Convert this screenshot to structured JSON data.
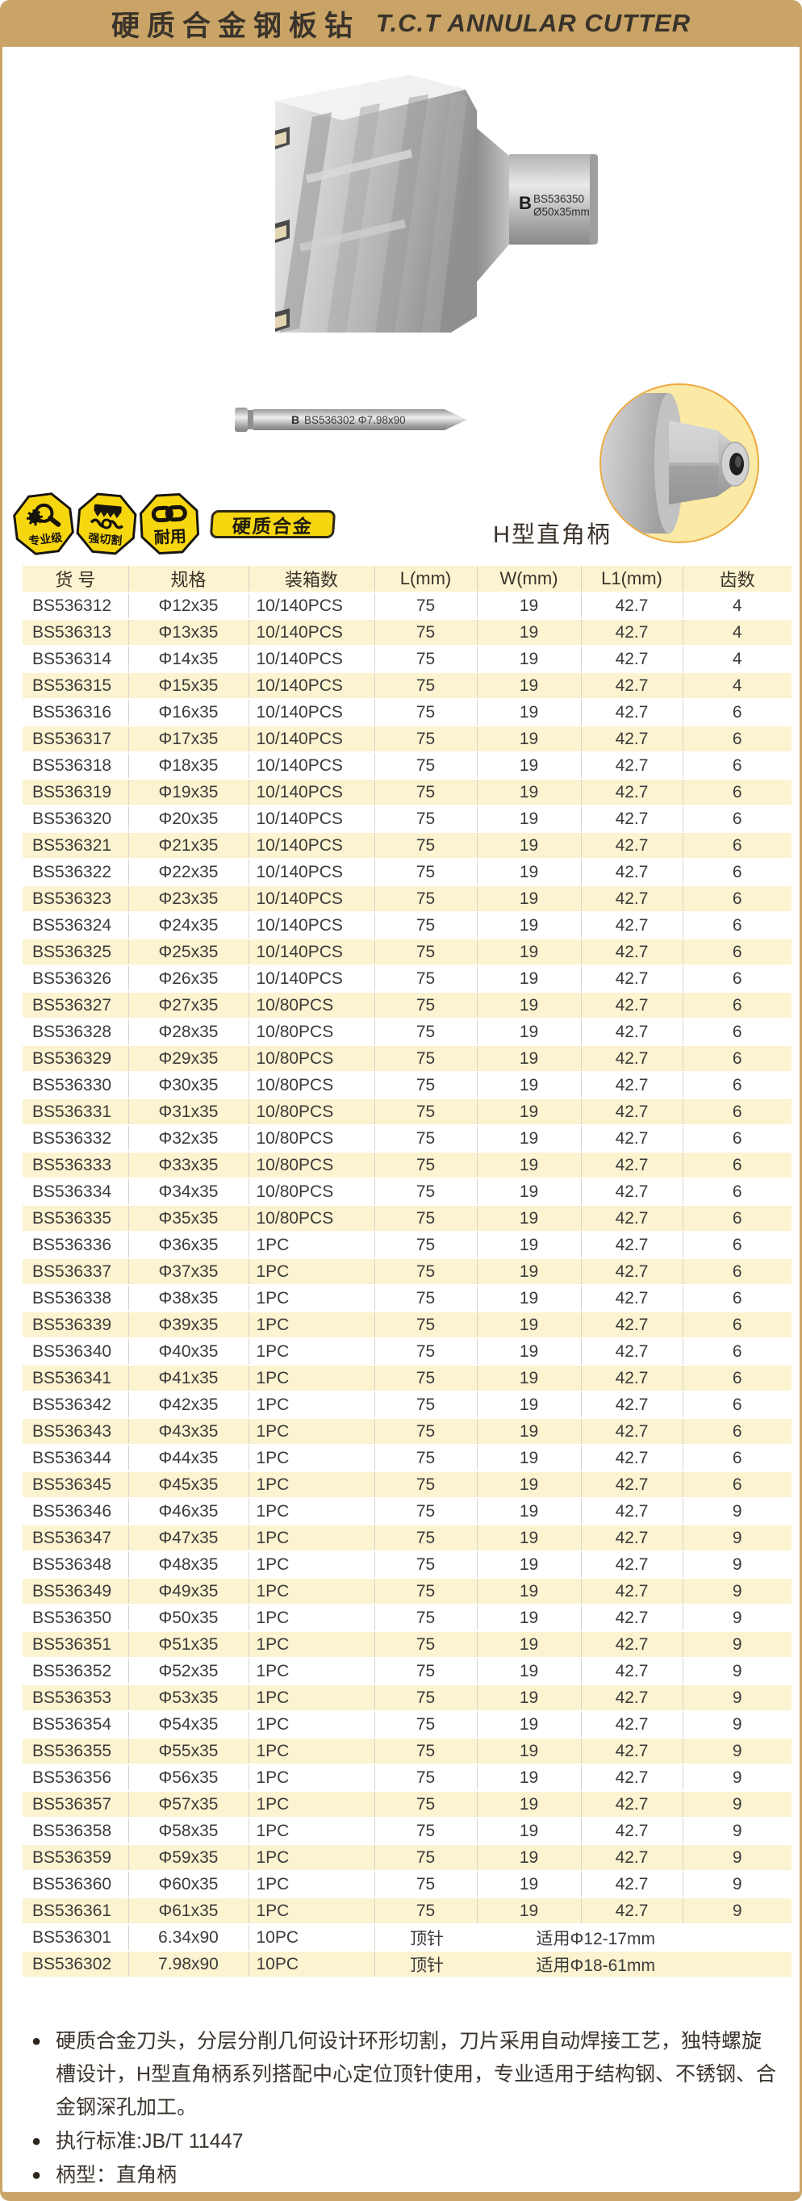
{
  "colors": {
    "accent_gold": "#C9A466",
    "row_stripe": "#FCF3D0",
    "badge_yellow": "#F6D60F",
    "circle_fill": "#FBE9A6",
    "title_text": "#3A332B"
  },
  "header": {
    "title_cn": "硬质合金钢板钻",
    "title_en": "T.C.T ANNULAR CUTTER"
  },
  "product": {
    "brand_letter": "B",
    "cutter_label_model": "BS536350",
    "cutter_label_size": "Ø50x35mm",
    "pin_label": "BS536302  Φ7.98x90",
    "shank_caption": "H型直角柄"
  },
  "badges": [
    {
      "label": "专业级",
      "icon": "magnifier-gear-icon"
    },
    {
      "label": "强切割",
      "icon": "cutting-blade-icon"
    },
    {
      "label": "耐用",
      "icon": "chain-link-icon"
    }
  ],
  "material_tag": "硬质合金",
  "table": {
    "headers": [
      "货  号",
      "规格",
      "装箱数",
      "L(mm)",
      "W(mm)",
      "L1(mm)",
      "齿数"
    ],
    "rows": [
      [
        "BS536312",
        "Φ12x35",
        "10/140PCS",
        "75",
        "19",
        "42.7",
        "4"
      ],
      [
        "BS536313",
        "Φ13x35",
        "10/140PCS",
        "75",
        "19",
        "42.7",
        "4"
      ],
      [
        "BS536314",
        "Φ14x35",
        "10/140PCS",
        "75",
        "19",
        "42.7",
        "4"
      ],
      [
        "BS536315",
        "Φ15x35",
        "10/140PCS",
        "75",
        "19",
        "42.7",
        "4"
      ],
      [
        "BS536316",
        "Φ16x35",
        "10/140PCS",
        "75",
        "19",
        "42.7",
        "6"
      ],
      [
        "BS536317",
        "Φ17x35",
        "10/140PCS",
        "75",
        "19",
        "42.7",
        "6"
      ],
      [
        "BS536318",
        "Φ18x35",
        "10/140PCS",
        "75",
        "19",
        "42.7",
        "6"
      ],
      [
        "BS536319",
        "Φ19x35",
        "10/140PCS",
        "75",
        "19",
        "42.7",
        "6"
      ],
      [
        "BS536320",
        "Φ20x35",
        "10/140PCS",
        "75",
        "19",
        "42.7",
        "6"
      ],
      [
        "BS536321",
        "Φ21x35",
        "10/140PCS",
        "75",
        "19",
        "42.7",
        "6"
      ],
      [
        "BS536322",
        "Φ22x35",
        "10/140PCS",
        "75",
        "19",
        "42.7",
        "6"
      ],
      [
        "BS536323",
        "Φ23x35",
        "10/140PCS",
        "75",
        "19",
        "42.7",
        "6"
      ],
      [
        "BS536324",
        "Φ24x35",
        "10/140PCS",
        "75",
        "19",
        "42.7",
        "6"
      ],
      [
        "BS536325",
        "Φ25x35",
        "10/140PCS",
        "75",
        "19",
        "42.7",
        "6"
      ],
      [
        "BS536326",
        "Φ26x35",
        "10/140PCS",
        "75",
        "19",
        "42.7",
        "6"
      ],
      [
        "BS536327",
        "Φ27x35",
        "10/80PCS",
        "75",
        "19",
        "42.7",
        "6"
      ],
      [
        "BS536328",
        "Φ28x35",
        "10/80PCS",
        "75",
        "19",
        "42.7",
        "6"
      ],
      [
        "BS536329",
        "Φ29x35",
        "10/80PCS",
        "75",
        "19",
        "42.7",
        "6"
      ],
      [
        "BS536330",
        "Φ30x35",
        "10/80PCS",
        "75",
        "19",
        "42.7",
        "6"
      ],
      [
        "BS536331",
        "Φ31x35",
        "10/80PCS",
        "75",
        "19",
        "42.7",
        "6"
      ],
      [
        "BS536332",
        "Φ32x35",
        "10/80PCS",
        "75",
        "19",
        "42.7",
        "6"
      ],
      [
        "BS536333",
        "Φ33x35",
        "10/80PCS",
        "75",
        "19",
        "42.7",
        "6"
      ],
      [
        "BS536334",
        "Φ34x35",
        "10/80PCS",
        "75",
        "19",
        "42.7",
        "6"
      ],
      [
        "BS536335",
        "Φ35x35",
        "10/80PCS",
        "75",
        "19",
        "42.7",
        "6"
      ],
      [
        "BS536336",
        "Φ36x35",
        "1PC",
        "75",
        "19",
        "42.7",
        "6"
      ],
      [
        "BS536337",
        "Φ37x35",
        "1PC",
        "75",
        "19",
        "42.7",
        "6"
      ],
      [
        "BS536338",
        "Φ38x35",
        "1PC",
        "75",
        "19",
        "42.7",
        "6"
      ],
      [
        "BS536339",
        "Φ39x35",
        "1PC",
        "75",
        "19",
        "42.7",
        "6"
      ],
      [
        "BS536340",
        "Φ40x35",
        "1PC",
        "75",
        "19",
        "42.7",
        "6"
      ],
      [
        "BS536341",
        "Φ41x35",
        "1PC",
        "75",
        "19",
        "42.7",
        "6"
      ],
      [
        "BS536342",
        "Φ42x35",
        "1PC",
        "75",
        "19",
        "42.7",
        "6"
      ],
      [
        "BS536343",
        "Φ43x35",
        "1PC",
        "75",
        "19",
        "42.7",
        "6"
      ],
      [
        "BS536344",
        "Φ44x35",
        "1PC",
        "75",
        "19",
        "42.7",
        "6"
      ],
      [
        "BS536345",
        "Φ45x35",
        "1PC",
        "75",
        "19",
        "42.7",
        "6"
      ],
      [
        "BS536346",
        "Φ46x35",
        "1PC",
        "75",
        "19",
        "42.7",
        "9"
      ],
      [
        "BS536347",
        "Φ47x35",
        "1PC",
        "75",
        "19",
        "42.7",
        "9"
      ],
      [
        "BS536348",
        "Φ48x35",
        "1PC",
        "75",
        "19",
        "42.7",
        "9"
      ],
      [
        "BS536349",
        "Φ49x35",
        "1PC",
        "75",
        "19",
        "42.7",
        "9"
      ],
      [
        "BS536350",
        "Φ50x35",
        "1PC",
        "75",
        "19",
        "42.7",
        "9"
      ],
      [
        "BS536351",
        "Φ51x35",
        "1PC",
        "75",
        "19",
        "42.7",
        "9"
      ],
      [
        "BS536352",
        "Φ52x35",
        "1PC",
        "75",
        "19",
        "42.7",
        "9"
      ],
      [
        "BS536353",
        "Φ53x35",
        "1PC",
        "75",
        "19",
        "42.7",
        "9"
      ],
      [
        "BS536354",
        "Φ54x35",
        "1PC",
        "75",
        "19",
        "42.7",
        "9"
      ],
      [
        "BS536355",
        "Φ55x35",
        "1PC",
        "75",
        "19",
        "42.7",
        "9"
      ],
      [
        "BS536356",
        "Φ56x35",
        "1PC",
        "75",
        "19",
        "42.7",
        "9"
      ],
      [
        "BS536357",
        "Φ57x35",
        "1PC",
        "75",
        "19",
        "42.7",
        "9"
      ],
      [
        "BS536358",
        "Φ58x35",
        "1PC",
        "75",
        "19",
        "42.7",
        "9"
      ],
      [
        "BS536359",
        "Φ59x35",
        "1PC",
        "75",
        "19",
        "42.7",
        "9"
      ],
      [
        "BS536360",
        "Φ60x35",
        "1PC",
        "75",
        "19",
        "42.7",
        "9"
      ],
      [
        "BS536361",
        "Φ61x35",
        "1PC",
        "75",
        "19",
        "42.7",
        "9"
      ]
    ],
    "special_rows": [
      {
        "code": "BS536301",
        "spec": "6.34x90",
        "pack": "10PC",
        "type": "顶针",
        "fit": "适用Φ12-17mm"
      },
      {
        "code": "BS536302",
        "spec": "7.98x90",
        "pack": "10PC",
        "type": "顶针",
        "fit": "适用Φ18-61mm"
      }
    ]
  },
  "notes": [
    "硬质合金刀头，分层分削几何设计环形切割，刀片采用自动焊接工艺，独特螺旋槽设计，H型直角柄系列搭配中心定位顶针使用，专业适用于结构钢、不锈钢、合金钢深孔加工。",
    "执行标准:JB/T 11447",
    "柄型：直角柄"
  ]
}
